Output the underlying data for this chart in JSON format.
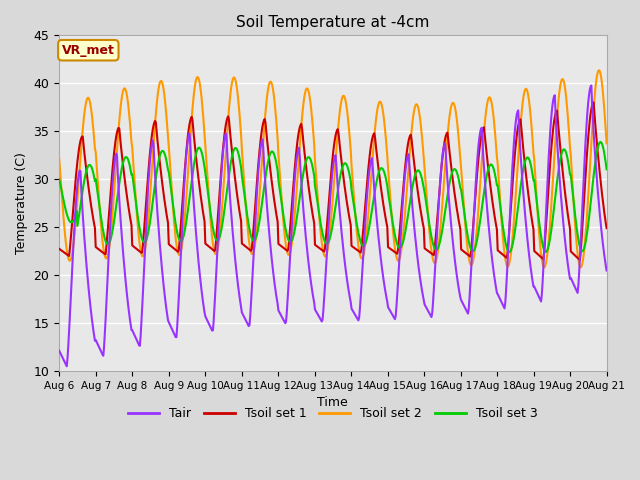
{
  "title": "Soil Temperature at -4cm",
  "xlabel": "Time",
  "ylabel": "Temperature (C)",
  "ylim": [
    10,
    45
  ],
  "background_color": "#d9d9d9",
  "plot_bg_color": "#e8e8e8",
  "grid_color": "white",
  "series": {
    "Tair": {
      "color": "#9933ff",
      "lw": 1.5
    },
    "Tsoil set 1": {
      "color": "#cc0000",
      "lw": 1.5
    },
    "Tsoil set 2": {
      "color": "#ff9900",
      "lw": 1.5
    },
    "Tsoil set 3": {
      "color": "#00cc00",
      "lw": 1.5
    }
  },
  "xtick_labels": [
    "Aug 6",
    "Aug 7",
    "Aug 8",
    "Aug 9",
    "Aug 10",
    "Aug 11",
    "Aug 12",
    "Aug 13",
    "Aug 14",
    "Aug 15",
    "Aug 16",
    "Aug 17",
    "Aug 18",
    "Aug 19",
    "Aug 20",
    "Aug 21"
  ],
  "ytick_labels": [
    10,
    15,
    20,
    25,
    30,
    35,
    40,
    45
  ],
  "label_box_text": "VR_met",
  "label_box_facecolor": "#ffffcc",
  "label_box_edgecolor": "#cc8800",
  "label_box_textcolor": "#990000"
}
